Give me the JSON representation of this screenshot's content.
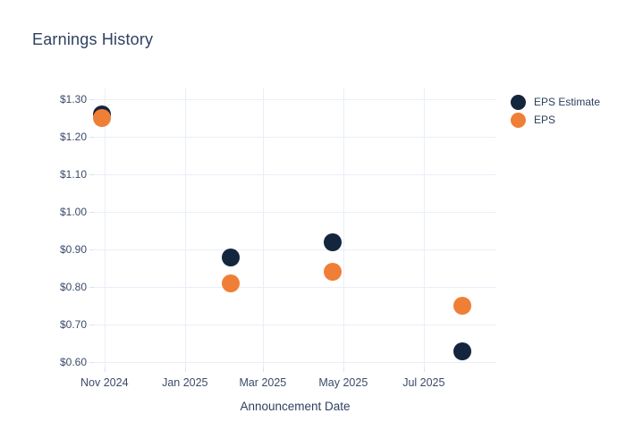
{
  "title": "Earnings History",
  "colors": {
    "background": "#ffffff",
    "grid": "#e9eef7",
    "tick": "#dbe3f0",
    "title_text": "#2e4160",
    "tick_text": "#3c4b68",
    "estimate": "#14253e",
    "eps": "#ef7f37"
  },
  "legend": {
    "items": [
      {
        "label": "EPS Estimate",
        "color": "#14253e"
      },
      {
        "label": "EPS",
        "color": "#ef7f37"
      }
    ]
  },
  "chart_data": {
    "type": "scatter",
    "title": "Earnings History",
    "xlabel": "Announcement Date",
    "ylabel": "",
    "grid": true,
    "legend_position": "right",
    "x_ticks": [
      {
        "date": "2024-11-01",
        "label": "Nov 2024"
      },
      {
        "date": "2025-01-01",
        "label": "Jan 2025"
      },
      {
        "date": "2025-03-01",
        "label": "Mar 2025"
      },
      {
        "date": "2025-05-01",
        "label": "May 2025"
      },
      {
        "date": "2025-07-01",
        "label": "Jul 2025"
      }
    ],
    "x_range": [
      "2024-10-24",
      "2025-08-25"
    ],
    "y_ticks": [
      {
        "value": 0.6,
        "label": "$0.60"
      },
      {
        "value": 0.7,
        "label": "$0.70"
      },
      {
        "value": 0.8,
        "label": "$0.80"
      },
      {
        "value": 0.9,
        "label": "$0.90"
      },
      {
        "value": 1.0,
        "label": "$1.00"
      },
      {
        "value": 1.1,
        "label": "$1.10"
      },
      {
        "value": 1.2,
        "label": "$1.20"
      },
      {
        "value": 1.3,
        "label": "$1.30"
      }
    ],
    "ylim": [
      0.586,
      1.329
    ],
    "series": [
      {
        "name": "EPS Estimate",
        "color": "#14253e",
        "points": [
          {
            "date": "2024-10-30",
            "value": 1.26
          },
          {
            "date": "2025-02-05",
            "value": 0.88
          },
          {
            "date": "2025-04-23",
            "value": 0.92
          },
          {
            "date": "2025-07-30",
            "value": 0.63
          }
        ]
      },
      {
        "name": "EPS",
        "color": "#ef7f37",
        "points": [
          {
            "date": "2024-10-30",
            "value": 1.25
          },
          {
            "date": "2025-02-05",
            "value": 0.81
          },
          {
            "date": "2025-04-23",
            "value": 0.84
          },
          {
            "date": "2025-07-30",
            "value": 0.75
          }
        ]
      }
    ]
  }
}
